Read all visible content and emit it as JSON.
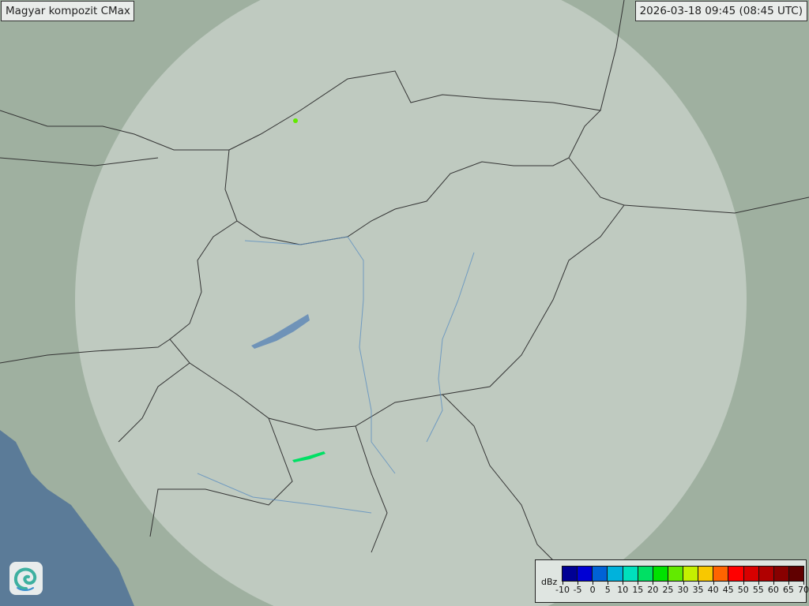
{
  "header": {
    "title": "Magyar kompozit  CMax",
    "timestamp": "2026-03-18 09:45 (08:45 UTC)"
  },
  "legend": {
    "unit": "dBz",
    "ticks": [
      "-10",
      "-5",
      "0",
      "5",
      "10",
      "15",
      "20",
      "25",
      "30",
      "35",
      "40",
      "45",
      "50",
      "55",
      "60",
      "65",
      "70"
    ],
    "colors": [
      "#000094",
      "#0000d4",
      "#0062d6",
      "#00b2dc",
      "#00e0bc",
      "#00e064",
      "#00e200",
      "#62ea00",
      "#c4f000",
      "#f8c800",
      "#ff6400",
      "#ff0000",
      "#d80000",
      "#b00000",
      "#880000",
      "#600000"
    ]
  },
  "map": {
    "land_color": "#9fb0a0",
    "radar_coverage_color": "#c9d4cc",
    "sea_color": "#5b7b98",
    "lake_color": "#6f93b8",
    "echo_colors": [
      "#00e064",
      "#62ea00"
    ]
  },
  "logo": {
    "icon": "swirl-logo-icon"
  }
}
